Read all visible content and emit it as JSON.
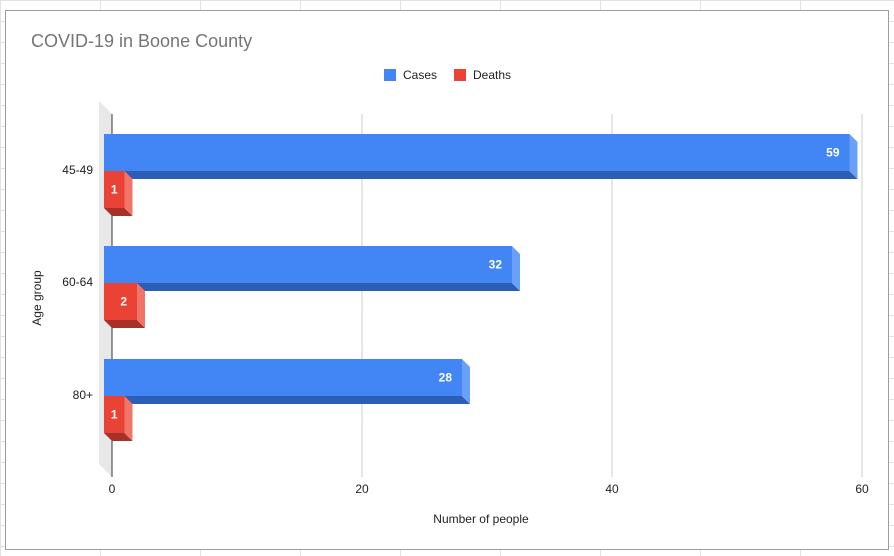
{
  "colors": {
    "cases": "#4285f4",
    "cases_side": "#6aa0f7",
    "cases_bottom": "#2d5eb6",
    "deaths": "#ea4335",
    "deaths_side": "#f07468",
    "deaths_bottom": "#a83026",
    "gridline": "#cccccc",
    "floor": "#e8e8e8"
  },
  "chart_data": {
    "type": "bar",
    "orientation": "horizontal",
    "style": "3d",
    "title": "COVID-19 in Boone County",
    "xlabel": "Number of people",
    "ylabel": "Age group",
    "categories": [
      "45-49",
      "60-64",
      "80+"
    ],
    "series": [
      {
        "name": "Cases",
        "values": [
          59,
          32,
          28
        ]
      },
      {
        "name": "Deaths",
        "values": [
          1,
          2,
          1
        ]
      }
    ],
    "xlim": [
      0,
      60
    ],
    "xticks": [
      "0",
      "20",
      "40",
      "60"
    ],
    "grid": true,
    "legend": "top",
    "data_labels": true
  }
}
